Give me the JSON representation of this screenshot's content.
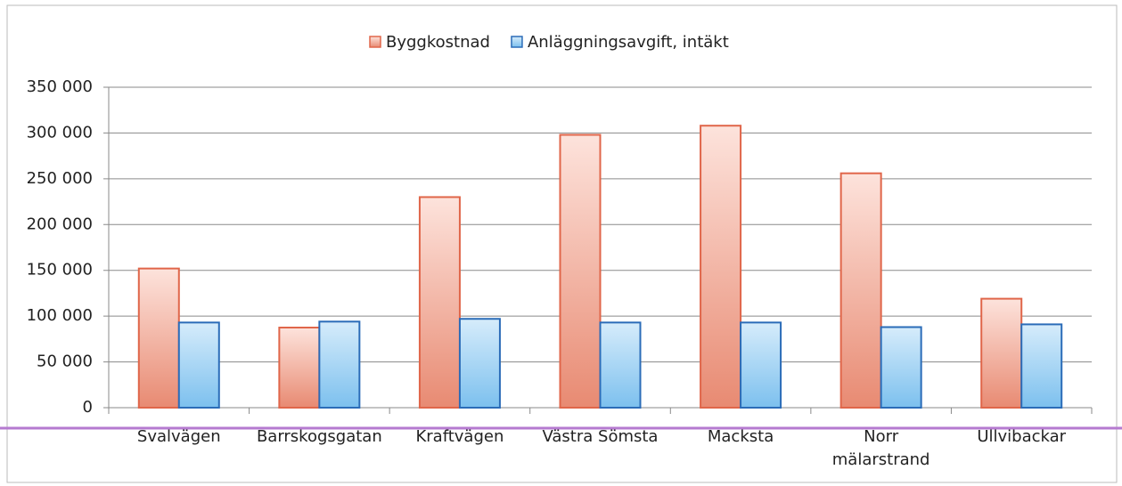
{
  "chart_data": {
    "type": "bar",
    "categories": [
      "Svalvägen",
      "Barrskogsgatan",
      "Kraftvägen",
      "Västra Sömsta",
      "Macksta",
      "Norr\nmälarstrand",
      "Ullvibackar"
    ],
    "series": [
      {
        "name": "Byggkostnad",
        "color": "#e0664a",
        "values": [
          152000,
          87500,
          230000,
          298000,
          308000,
          256000,
          119000
        ]
      },
      {
        "name": "Anläggningsavgift, intäkt",
        "color": "#2b6cb8",
        "values": [
          93000,
          94000,
          97000,
          93000,
          93000,
          88000,
          91000
        ]
      }
    ],
    "ylim": [
      0,
      350000
    ],
    "yticks": [
      0,
      {
        "value": 50000,
        "label": "50 000"
      },
      {
        "value": 100000,
        "label": "100 000"
      },
      {
        "value": 150000,
        "label": "150 000"
      },
      {
        "value": 200000,
        "label": "200 000"
      },
      {
        "value": 250000,
        "label": "250 000"
      },
      {
        "value": 300000,
        "label": "300 000"
      },
      {
        "value": 350000,
        "label": "350 000"
      }
    ],
    "grid": true,
    "legend": "top"
  }
}
